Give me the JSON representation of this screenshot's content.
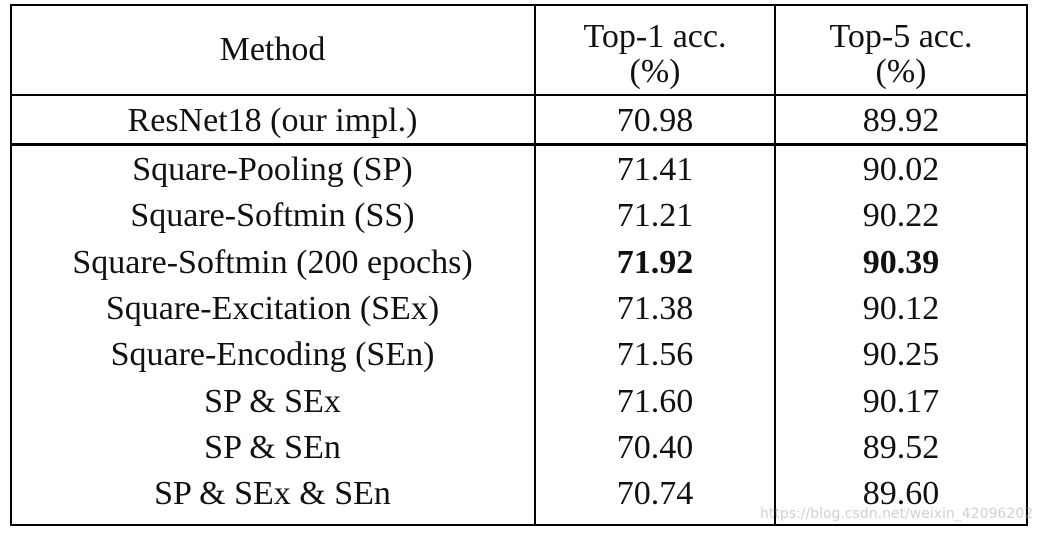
{
  "table": {
    "header": [
      "Method",
      [
        "Top-1 acc.",
        "(%)"
      ],
      [
        "Top-5 acc.",
        "(%)"
      ]
    ],
    "baseline": [
      "ResNet18 (our impl.)",
      "70.98",
      "89.92"
    ],
    "rows": [
      [
        "Square-Pooling (SP)",
        "71.41",
        "90.02"
      ],
      [
        "Square-Softmin (SS)",
        "71.21",
        "90.22"
      ],
      [
        "Square-Softmin (200 epochs)",
        "71.92",
        "90.39"
      ],
      [
        "Square-Excitation (SEx)",
        "71.38",
        "90.12"
      ],
      [
        "Square-Encoding (SEn)",
        "71.56",
        "90.25"
      ],
      [
        "SP & SEx",
        "71.60",
        "90.17"
      ],
      [
        "SP & SEn",
        "70.40",
        "89.52"
      ],
      [
        "SP & SEx & SEn",
        "70.74",
        "89.60"
      ]
    ]
  },
  "watermark": "https://blog.csdn.net/weixin_42096202"
}
